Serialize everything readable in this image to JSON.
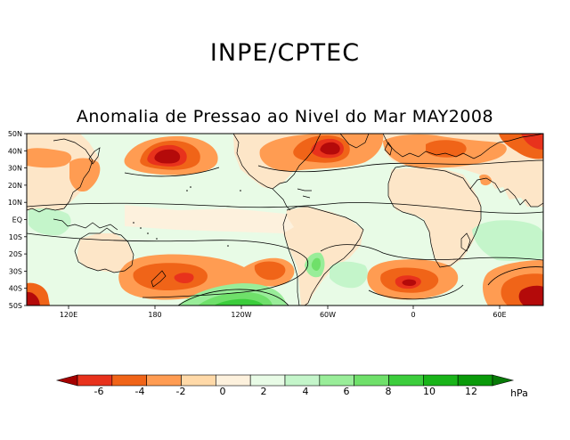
{
  "header": {
    "title": "INPE/CPTEC",
    "subtitle": "Anomalia de Pressao ao Nivel do Mar MAY2008"
  },
  "map": {
    "lat_labels": [
      "50N",
      "40N",
      "30N",
      "20N",
      "10N",
      "EQ",
      "10S",
      "20S",
      "30S",
      "40S",
      "50S"
    ],
    "lon_labels": [
      "120E",
      "180",
      "120W",
      "60W",
      "0",
      "60E"
    ],
    "colors": {
      "ocean_neutral": "#e8fbe6",
      "land_neutral": "#fde6c8",
      "neg1": "#ffd9a8",
      "neg2": "#ff9c52",
      "neg3": "#f06418",
      "neg4": "#e8321c",
      "neg5": "#b40a0a",
      "pos1": "#c4f5ca",
      "pos2": "#86e67f",
      "pos3": "#4ccb4b",
      "pos4": "#1e9e26"
    }
  },
  "colorbar": {
    "labels": [
      "-6",
      "-4",
      "-2",
      "0",
      "2",
      "4",
      "6",
      "8",
      "10",
      "12"
    ],
    "unit": "hPa",
    "colors": [
      "#a50000",
      "#e8321c",
      "#f06418",
      "#ff9c52",
      "#ffd9a8",
      "#fdf1dd",
      "#e8fbe6",
      "#c4f5ca",
      "#99ed99",
      "#6fe06a",
      "#3ccd3c",
      "#19b419",
      "#0a9a0a",
      "#087a08"
    ]
  }
}
